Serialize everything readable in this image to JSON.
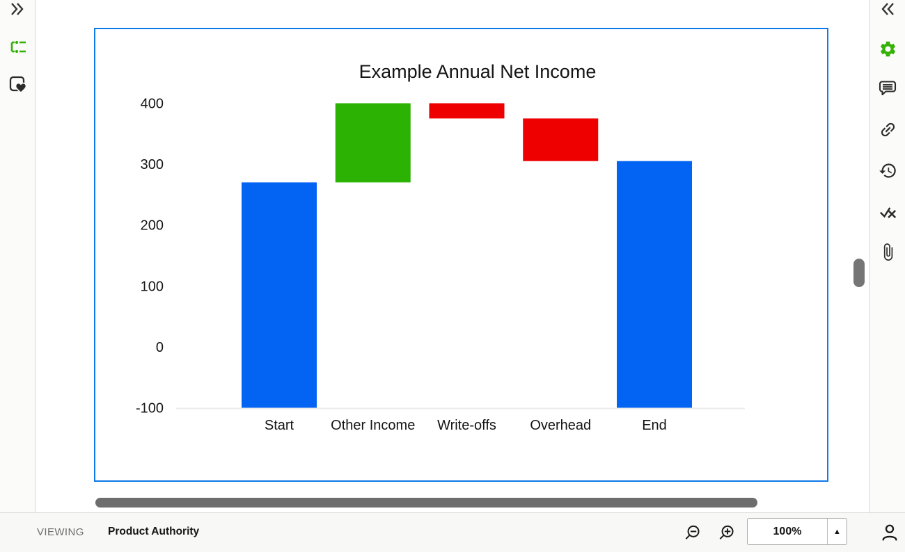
{
  "colors": {
    "accent_green": "#35b108",
    "panel_border_blue": "#0e79e9",
    "bar_blue": "#0364f4",
    "bar_green": "#2cb202",
    "bar_red": "#ee0000"
  },
  "left_rail": {
    "icons": [
      "expand-panel-icon",
      "outline-tree-icon",
      "favorite-frame-icon"
    ]
  },
  "right_rail": {
    "icons": [
      "collapse-panel-icon",
      "settings-gear-icon",
      "comment-icon",
      "link-icon",
      "history-icon",
      "check-x-icon",
      "attachment-icon"
    ]
  },
  "statusbar": {
    "viewing_label": "VIEWING",
    "document_title": "Product Authority",
    "zoom_level": "100%"
  },
  "chart_data": {
    "type": "waterfall",
    "title": "Example Annual Net Income",
    "categories": [
      "Start",
      "Other Income",
      "Write-offs",
      "Overhead",
      "End"
    ],
    "bars": [
      {
        "label": "Start",
        "from": -100,
        "to": 270,
        "kind": "total"
      },
      {
        "label": "Other Income",
        "from": 270,
        "to": 400,
        "delta": 130,
        "kind": "increase"
      },
      {
        "label": "Write-offs",
        "from": 375,
        "to": 400,
        "delta": -25,
        "kind": "decrease"
      },
      {
        "label": "Overhead",
        "from": 305,
        "to": 375,
        "delta": -70,
        "kind": "decrease"
      },
      {
        "label": "End",
        "from": -100,
        "to": 305,
        "kind": "total"
      }
    ],
    "bar_colors": {
      "total": "#0364f4",
      "increase": "#2cb202",
      "decrease": "#ee0000"
    },
    "yticks": [
      400,
      300,
      200,
      100,
      0,
      -100
    ],
    "ylim": [
      -100,
      400
    ],
    "grid": false,
    "legend": false,
    "xlabel": "",
    "ylabel": ""
  }
}
